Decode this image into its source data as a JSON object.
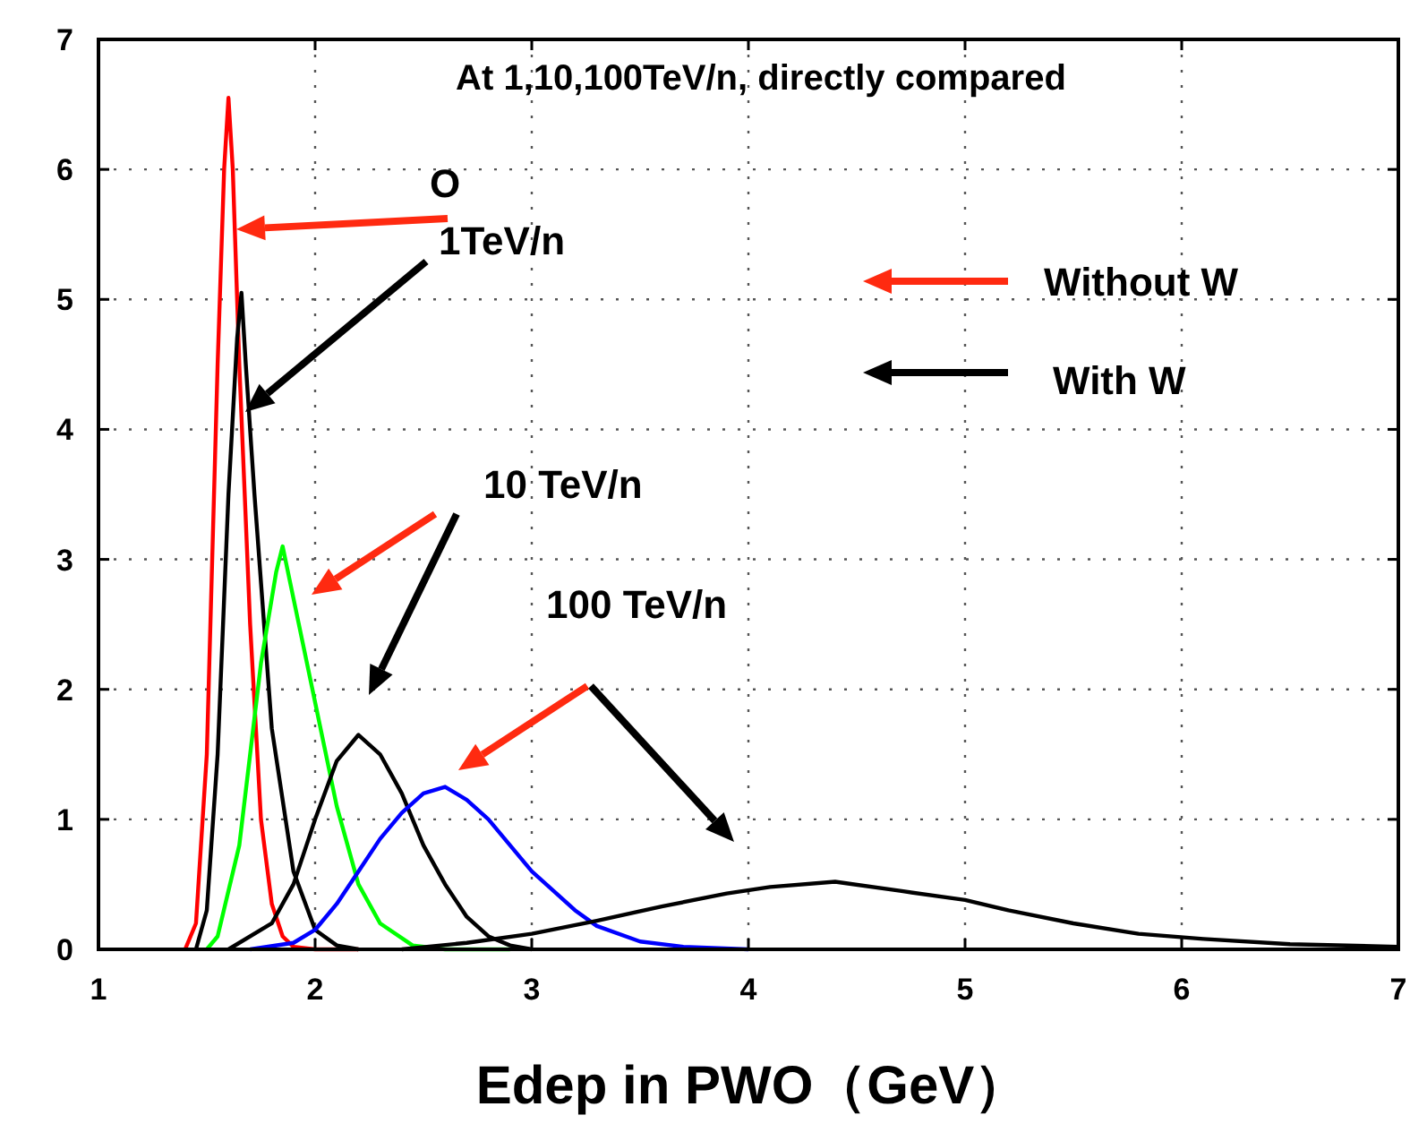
{
  "chart_data": {
    "type": "line",
    "title": "At 1,10,100TeV/n, directly compared",
    "xlabel": "Edep in PWO（GeV）",
    "xlim": [
      1,
      7
    ],
    "ylim": [
      0,
      7
    ],
    "xticks": [
      1,
      2,
      3,
      4,
      5,
      6,
      7
    ],
    "yticks": [
      0,
      1,
      2,
      3,
      4,
      5,
      6,
      7
    ],
    "grid": true,
    "series": [
      {
        "color": "#ff0000",
        "x": [
          1.4,
          1.45,
          1.5,
          1.55,
          1.58,
          1.6,
          1.62,
          1.65,
          1.7,
          1.75,
          1.8,
          1.85,
          1.9,
          2.0,
          2.2
        ],
        "values": [
          0,
          0.2,
          1.5,
          4.5,
          6.0,
          6.55,
          6.0,
          4.5,
          2.5,
          1.0,
          0.35,
          0.1,
          0.02,
          0,
          0
        ]
      },
      {
        "color": "#000000",
        "x": [
          1.45,
          1.5,
          1.55,
          1.6,
          1.64,
          1.66,
          1.68,
          1.72,
          1.8,
          1.9,
          2.0,
          2.1,
          2.2
        ],
        "values": [
          0,
          0.3,
          1.5,
          3.5,
          4.7,
          5.05,
          4.5,
          3.5,
          1.7,
          0.6,
          0.15,
          0.03,
          0
        ]
      },
      {
        "color": "#00ff00",
        "x": [
          1.5,
          1.55,
          1.65,
          1.75,
          1.82,
          1.85,
          1.9,
          2.0,
          2.1,
          2.2,
          2.3,
          2.45,
          2.6,
          2.9
        ],
        "values": [
          0,
          0.1,
          0.8,
          2.2,
          2.9,
          3.1,
          2.7,
          1.9,
          1.1,
          0.5,
          0.2,
          0.03,
          0,
          0
        ]
      },
      {
        "color": "#000000",
        "x": [
          1.6,
          1.8,
          1.9,
          2.0,
          2.1,
          2.2,
          2.3,
          2.4,
          2.5,
          2.6,
          2.7,
          2.8,
          2.9,
          3.0
        ],
        "values": [
          0,
          0.2,
          0.5,
          1.0,
          1.45,
          1.65,
          1.5,
          1.2,
          0.8,
          0.5,
          0.25,
          0.1,
          0.03,
          0
        ]
      },
      {
        "color": "#0000ff",
        "x": [
          1.7,
          1.9,
          2.0,
          2.1,
          2.2,
          2.3,
          2.4,
          2.5,
          2.6,
          2.7,
          2.8,
          2.9,
          3.0,
          3.1,
          3.2,
          3.3,
          3.5,
          3.7,
          4.0
        ],
        "values": [
          0,
          0.05,
          0.15,
          0.35,
          0.6,
          0.85,
          1.05,
          1.2,
          1.25,
          1.15,
          1.0,
          0.8,
          0.6,
          0.45,
          0.3,
          0.18,
          0.06,
          0.02,
          0
        ]
      },
      {
        "color": "#000000",
        "x": [
          2.4,
          2.7,
          3.0,
          3.3,
          3.6,
          3.9,
          4.1,
          4.4,
          4.7,
          5.0,
          5.2,
          5.5,
          5.8,
          6.1,
          6.5,
          7.0
        ],
        "values": [
          0,
          0.05,
          0.12,
          0.22,
          0.33,
          0.43,
          0.48,
          0.52,
          0.45,
          0.38,
          0.3,
          0.2,
          0.12,
          0.08,
          0.04,
          0.02
        ]
      }
    ],
    "annotations": [
      "O",
      "1TeV/n",
      "10 TeV/n",
      "100 TeV/n",
      "Without W",
      "With W"
    ]
  }
}
